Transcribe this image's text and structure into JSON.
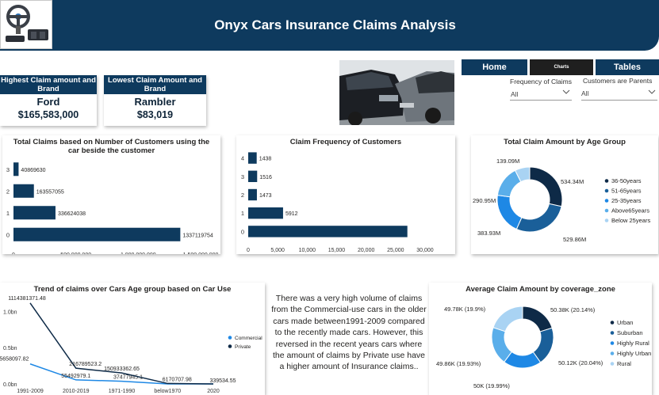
{
  "header": {
    "title": "Onyx Cars Insurance Claims Analysis",
    "logo_icon": "steering-wheel-pedals-icon"
  },
  "kpis": [
    {
      "heading": "Highest Claim amount and Brand",
      "brand": "Ford",
      "amount": "$165,583,000"
    },
    {
      "heading": "Lowest Claim Amount and Brand",
      "brand": "Rambler",
      "amount": "$83,019"
    }
  ],
  "nav": {
    "home": "Home",
    "charts": "Charts",
    "tables": "Tables"
  },
  "slicers": [
    {
      "label": "Frequency of Claims",
      "value": "All"
    },
    {
      "label": "Customers are Parents",
      "value": "All"
    }
  ],
  "colors": {
    "navy": "#0e3a5e",
    "dark": "#0e2a47",
    "mid": "#1a6fb4",
    "bright": "#1e88e5",
    "light": "#5aaeea",
    "pale": "#a9d3f3"
  },
  "charts": {
    "claims_by_customers": {
      "title": "Total Claims based on Number of Customers using the car beside the customer",
      "type": "bar",
      "orientation": "horizontal",
      "categories": [
        "3",
        "2",
        "1",
        "0"
      ],
      "values": [
        40869630,
        163557055,
        336624038,
        1337119754
      ],
      "labels": [
        "40869630",
        "163557055",
        "336624038",
        "1337119754"
      ],
      "x_ticks": [
        "0",
        "500,000,000",
        "1,000,000,000",
        "1,500,000,000"
      ],
      "xlim": [
        0,
        1500000000
      ]
    },
    "claim_frequency": {
      "title": "Claim Frequency of Customers",
      "type": "bar",
      "orientation": "horizontal",
      "categories": [
        "4",
        "3",
        "2",
        "1",
        "0"
      ],
      "values": [
        1438,
        1516,
        1473,
        5912,
        27000
      ],
      "labels": [
        "1438",
        "1516",
        "1473",
        "5912",
        ""
      ],
      "x_ticks": [
        "0",
        "5,000",
        "10,000",
        "15,000",
        "20,000",
        "25,000",
        "30,000"
      ],
      "xlim": [
        0,
        30000
      ]
    },
    "age_group": {
      "title": "Total Claim Amount by Age Group",
      "type": "pie",
      "slices": [
        {
          "name": "36-50years",
          "value": 534.34,
          "label": "534.34M",
          "color": "#0e2a47"
        },
        {
          "name": "51-65years",
          "value": 529.86,
          "label": "529.86M",
          "color": "#1a5f99"
        },
        {
          "name": "25-35years",
          "value": 383.93,
          "label": "383.93M",
          "color": "#1e88e5"
        },
        {
          "name": "Above65years",
          "value": 290.95,
          "label": "290.95M",
          "color": "#5aaeea"
        },
        {
          "name": "Below 25years",
          "value": 139.09,
          "label": "139.09M",
          "color": "#a9d3f3"
        }
      ]
    },
    "trend": {
      "title": "Trend of claims over Cars Age group based on Car Use",
      "type": "line",
      "categories": [
        "1991-2009",
        "2010-2019",
        "1971-1990",
        "below1970",
        "2020"
      ],
      "y_ticks": [
        "1.0bn",
        "0.5bn",
        "0.0bn"
      ],
      "ylim": [
        0,
        1200000000
      ],
      "series": [
        {
          "name": "Commercial",
          "color": "#1e88e5",
          "values": [
            275658097.82,
            55492979.1,
            37477945.1,
            170797.98,
            339534.55
          ],
          "labels": [
            "275658097.82",
            "55492979.1",
            "37477945.1",
            "",
            "339534.55"
          ]
        },
        {
          "name": "Private",
          "color": "#0e2a47",
          "values": [
            1114381371.48,
            216789523.2,
            150933362.65,
            6170707.98,
            339534.55
          ],
          "labels": [
            "1114381371.48",
            "216789523.2",
            "150933362.65",
            "6170707.98",
            ""
          ]
        }
      ]
    },
    "coverage_zone": {
      "title": "Average Claim Amount by coverage_zone",
      "type": "pie",
      "slices": [
        {
          "name": "Urban",
          "value": 20.14,
          "label": "50.38K (20.14%)",
          "color": "#0e2a47"
        },
        {
          "name": "Suburban",
          "value": 20.04,
          "label": "50.12K (20.04%)",
          "color": "#1a5f99"
        },
        {
          "name": "Highly Rural",
          "value": 19.99,
          "label": "50K (19.99%)",
          "color": "#1e88e5"
        },
        {
          "name": "Highly Urban",
          "value": 19.93,
          "label": "49.86K (19.93%)",
          "color": "#5aaeea"
        },
        {
          "name": "Rural",
          "value": 19.9,
          "label": "49.78K (19.9%)",
          "color": "#a9d3f3"
        }
      ]
    }
  },
  "insight": "There was a very high volume of claims from the Commercial-use cars in the older cars made between1991-2009 compared to the recently made cars. However, this reversed in the recent years cars where the amount of claims by Private use have a higher amount of Insurance claims.."
}
